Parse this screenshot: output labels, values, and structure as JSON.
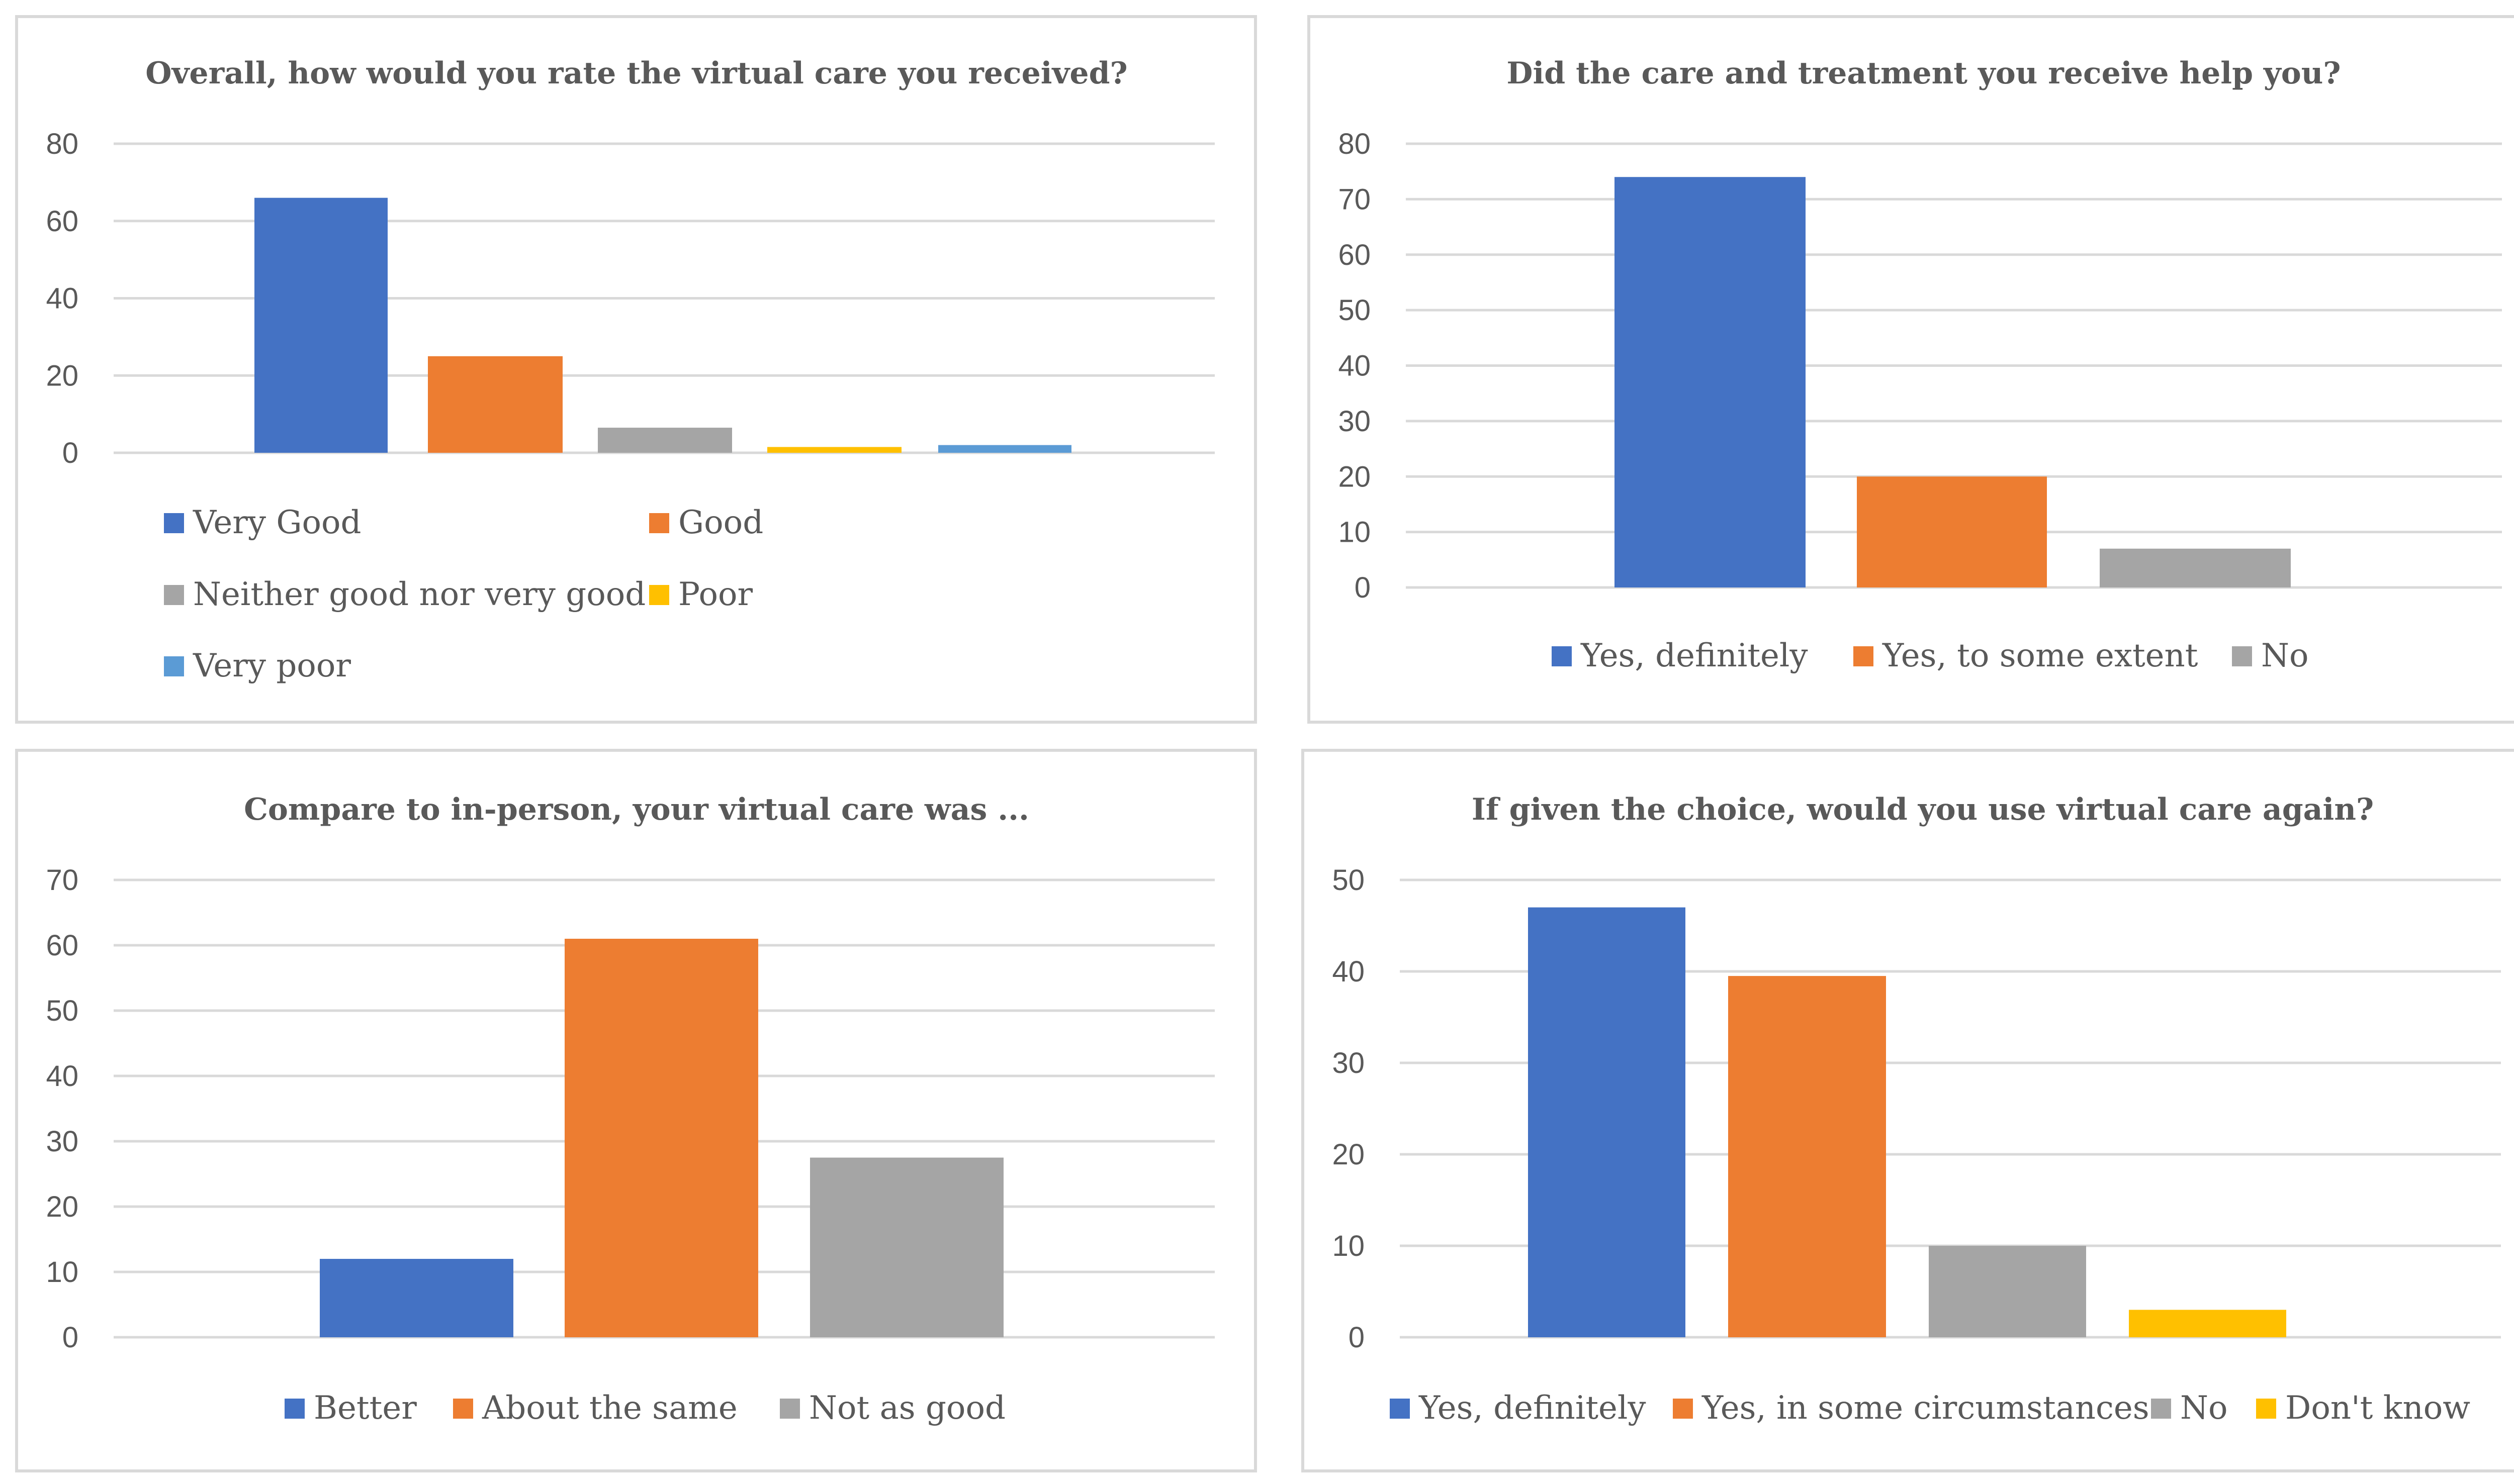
{
  "chart_data": [
    {
      "type": "bar",
      "title": "Overall, how would you rate the virtual care you received?",
      "categories": [
        "Very Good",
        "Good",
        "Neither good nor very good",
        "Poor",
        "Very poor"
      ],
      "values": [
        66,
        25,
        6.5,
        1.5,
        2
      ],
      "colors": [
        "#4472C4",
        "#ED7D31",
        "#A5A5A5",
        "#FFC000",
        "#5B9BD5"
      ],
      "y_ticks": [
        "0",
        "20",
        "40",
        "60",
        "80"
      ],
      "ylim": [
        0,
        80
      ],
      "xlabel": "",
      "ylabel": "",
      "legend": "bottom"
    },
    {
      "type": "bar",
      "title": "Did the care and treatment you receive help you?",
      "categories": [
        "Yes, definitely",
        "Yes, to some extent",
        "No"
      ],
      "values": [
        74,
        20,
        7
      ],
      "colors": [
        "#4472C4",
        "#ED7D31",
        "#A5A5A5"
      ],
      "y_ticks": [
        "0",
        "10",
        "20",
        "30",
        "40",
        "50",
        "60",
        "70",
        "80"
      ],
      "ylim": [
        0,
        80
      ],
      "xlabel": "",
      "ylabel": "",
      "legend": "bottom"
    },
    {
      "type": "bar",
      "title": "Compare to in-person, your virtual care was ...",
      "categories": [
        "Better",
        "About the same",
        "Not as good"
      ],
      "values": [
        12,
        61,
        27.5
      ],
      "colors": [
        "#4472C4",
        "#ED7D31",
        "#A5A5A5"
      ],
      "y_ticks": [
        "0",
        "10",
        "20",
        "30",
        "40",
        "50",
        "60",
        "70"
      ],
      "ylim": [
        0,
        70
      ],
      "xlabel": "",
      "ylabel": "",
      "legend": "bottom"
    },
    {
      "type": "bar",
      "title": "If given the choice, would you use virtual care again?",
      "categories": [
        "Yes, definitely",
        "Yes, in some circumstances",
        "No",
        "Don't know"
      ],
      "values": [
        47,
        39.5,
        10,
        3
      ],
      "colors": [
        "#4472C4",
        "#ED7D31",
        "#A5A5A5",
        "#FFC000"
      ],
      "y_ticks": [
        "0",
        "10",
        "20",
        "30",
        "40",
        "50"
      ],
      "ylim": [
        0,
        50
      ],
      "xlabel": "",
      "ylabel": "",
      "legend": "bottom"
    }
  ]
}
